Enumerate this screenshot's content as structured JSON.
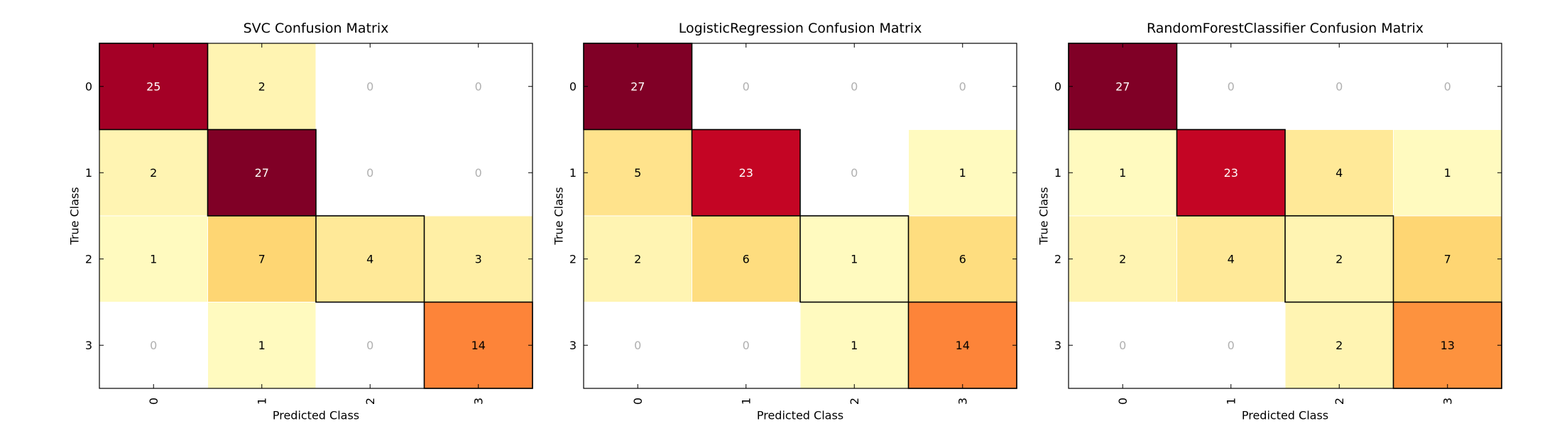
{
  "chart_data": [
    {
      "type": "heatmap",
      "title": "SVC Confusion Matrix",
      "xlabel": "Predicted Class",
      "ylabel": "True Class",
      "x_categories": [
        "0",
        "1",
        "2",
        "3"
      ],
      "y_categories": [
        "0",
        "1",
        "2",
        "3"
      ],
      "values": [
        [
          25,
          2,
          0,
          0
        ],
        [
          2,
          27,
          0,
          0
        ],
        [
          1,
          7,
          4,
          3
        ],
        [
          0,
          1,
          0,
          14
        ]
      ],
      "colormap": "YlOrRd",
      "diagonal_outlined": true
    },
    {
      "type": "heatmap",
      "title": "LogisticRegression Confusion Matrix",
      "xlabel": "Predicted Class",
      "ylabel": "True Class",
      "x_categories": [
        "0",
        "1",
        "2",
        "3"
      ],
      "y_categories": [
        "0",
        "1",
        "2",
        "3"
      ],
      "values": [
        [
          27,
          0,
          0,
          0
        ],
        [
          5,
          23,
          0,
          1
        ],
        [
          2,
          6,
          1,
          6
        ],
        [
          0,
          0,
          1,
          14
        ]
      ],
      "colormap": "YlOrRd",
      "diagonal_outlined": true
    },
    {
      "type": "heatmap",
      "title": "RandomForestClassifier Confusion Matrix",
      "xlabel": "Predicted Class",
      "ylabel": "True Class",
      "x_categories": [
        "0",
        "1",
        "2",
        "3"
      ],
      "y_categories": [
        "0",
        "1",
        "2",
        "3"
      ],
      "values": [
        [
          27,
          0,
          0,
          0
        ],
        [
          1,
          23,
          4,
          1
        ],
        [
          2,
          4,
          2,
          7
        ],
        [
          0,
          0,
          2,
          13
        ]
      ],
      "colormap": "YlOrRd",
      "diagonal_outlined": true
    }
  ],
  "colors": {
    "zero_cell": "#ffffff",
    "zero_text": "#b0b0b0",
    "dark_text": "#000000",
    "light_text": "#ffffff",
    "frame": "#000000",
    "colormap_stops": [
      "#ffffcc",
      "#ffeda0",
      "#fed976",
      "#feb24c",
      "#fd8d3c",
      "#fc4e2a",
      "#e31a1c",
      "#bd0026",
      "#800026"
    ]
  }
}
